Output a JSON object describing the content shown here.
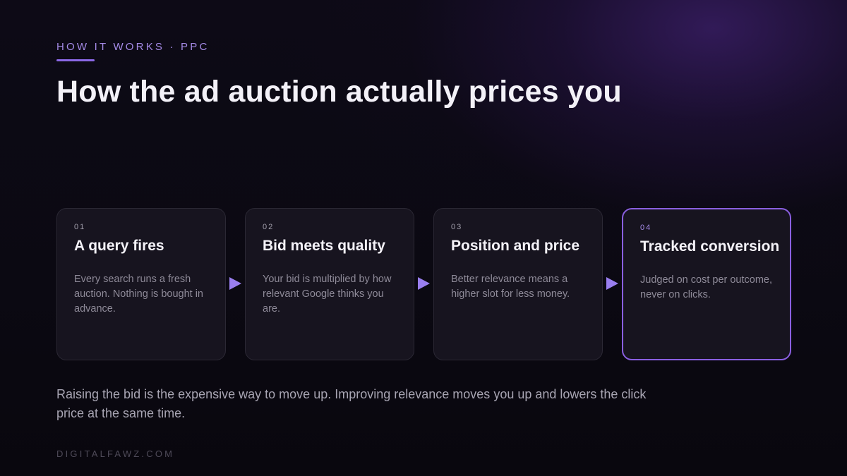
{
  "header": {
    "eyebrow": "HOW IT WORKS · PPC",
    "title": "How the ad auction actually prices you"
  },
  "steps": [
    {
      "number": "01",
      "title": "A query fires",
      "body": "Every search runs a fresh auction. Nothing is bought in advance."
    },
    {
      "number": "02",
      "title": "Bid meets quality",
      "body": "Your bid is multiplied by how relevant Google thinks you are."
    },
    {
      "number": "03",
      "title": "Position and price",
      "body": "Better relevance means a higher slot for less money."
    },
    {
      "number": "04",
      "title": "Tracked conversion",
      "body": "Judged on cost per outcome, never on clicks.",
      "highlighted": true
    }
  ],
  "footnote": "Raising the bid is the expensive way to move up. Improving relevance moves you up and lowers the click price at the same time.",
  "brand": "DIGITALFAWZ.COM",
  "colors": {
    "accent": "#8b68e6",
    "arrow": "#9a7ff0",
    "background": "#0a0810",
    "card": "#17141f"
  }
}
